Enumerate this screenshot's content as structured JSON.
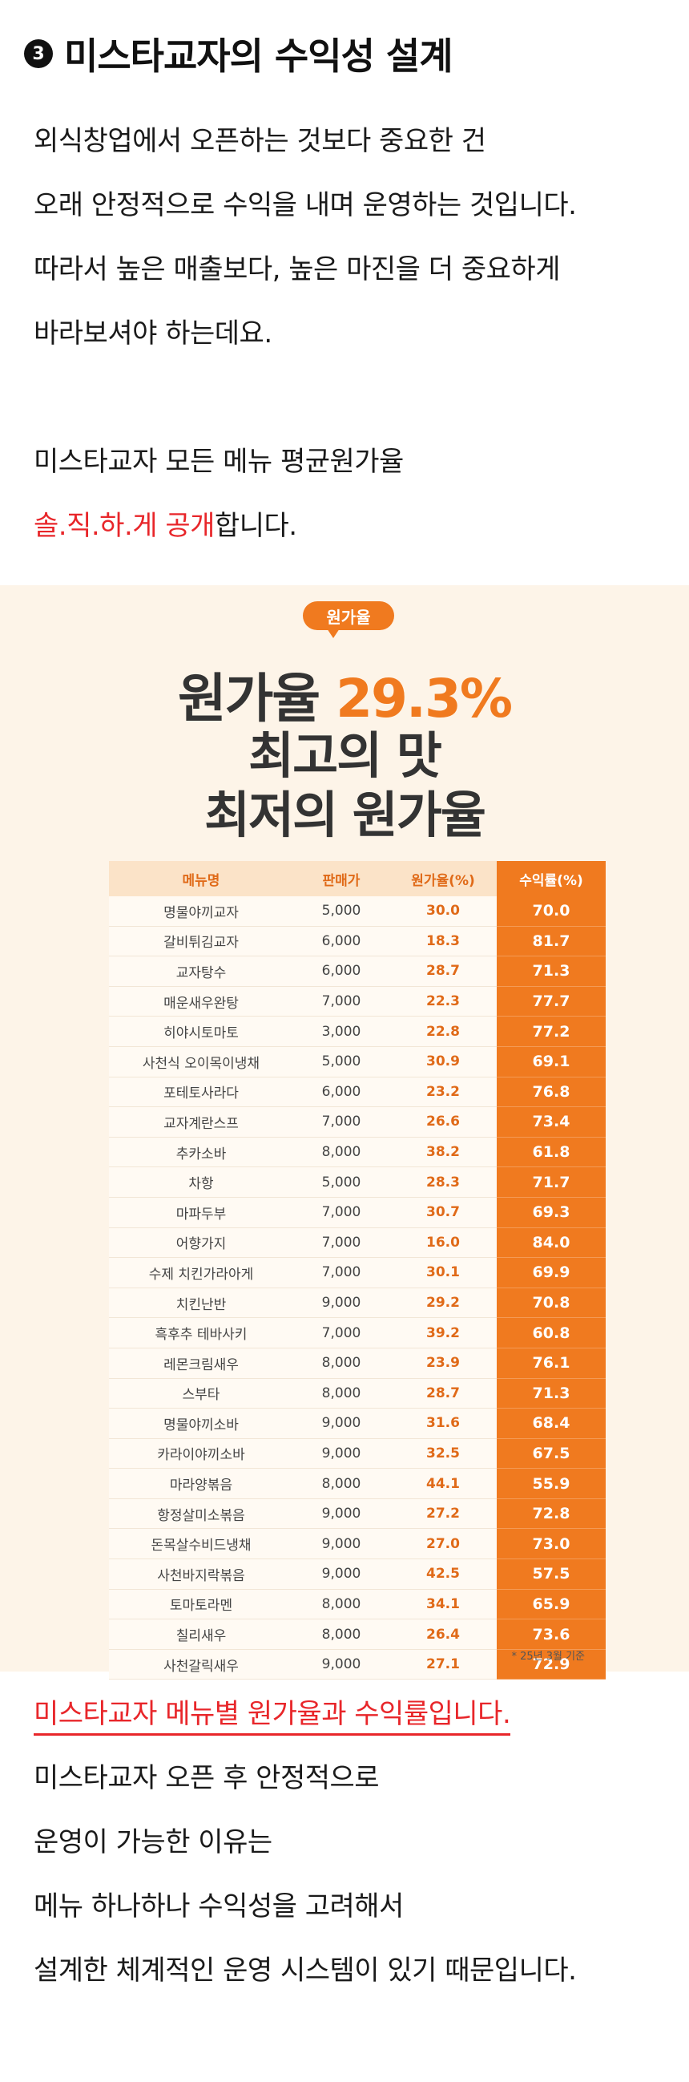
{
  "heading": {
    "number": "3",
    "title": "미스타교자의 수익성 설계"
  },
  "intro": [
    "외식창업에서 오픈하는 것보다 중요한 건",
    "오래 안정적으로 수익을 내며 운영하는 것입니다.",
    "따라서 높은 매출보다, 높은 마진을 더 중요하게",
    "바라보셔야 하는데요."
  ],
  "reveal": {
    "line1": "미스타교자 모든 메뉴 평균원가율",
    "line2_red": "솔.직.하.게 공개",
    "line2_rest": "합니다."
  },
  "infographic": {
    "badge": "원가율",
    "line1_prefix": "원가율 ",
    "line1_value": "29.3%",
    "line2": "최고의 맛",
    "line3": "최저의 원가율",
    "headers": [
      "메뉴명",
      "판매가",
      "원가율(%)",
      "수익률(%)"
    ],
    "rows": [
      {
        "name": "명물야끼교자",
        "price": "5,000",
        "cost": "30.0",
        "profit": "70.0"
      },
      {
        "name": "갈비튀김교자",
        "price": "6,000",
        "cost": "18.3",
        "profit": "81.7"
      },
      {
        "name": "교자탕수",
        "price": "6,000",
        "cost": "28.7",
        "profit": "71.3"
      },
      {
        "name": "매운새우완탕",
        "price": "7,000",
        "cost": "22.3",
        "profit": "77.7"
      },
      {
        "name": "히야시토마토",
        "price": "3,000",
        "cost": "22.8",
        "profit": "77.2"
      },
      {
        "name": "사천식 오이목이냉채",
        "price": "5,000",
        "cost": "30.9",
        "profit": "69.1"
      },
      {
        "name": "포테토사라다",
        "price": "6,000",
        "cost": "23.2",
        "profit": "76.8"
      },
      {
        "name": "교자계란스프",
        "price": "7,000",
        "cost": "26.6",
        "profit": "73.4"
      },
      {
        "name": "추카소바",
        "price": "8,000",
        "cost": "38.2",
        "profit": "61.8"
      },
      {
        "name": "차항",
        "price": "5,000",
        "cost": "28.3",
        "profit": "71.7"
      },
      {
        "name": "마파두부",
        "price": "7,000",
        "cost": "30.7",
        "profit": "69.3"
      },
      {
        "name": "어향가지",
        "price": "7,000",
        "cost": "16.0",
        "profit": "84.0"
      },
      {
        "name": "수제 치킨가라아게",
        "price": "7,000",
        "cost": "30.1",
        "profit": "69.9"
      },
      {
        "name": "치킨난반",
        "price": "9,000",
        "cost": "29.2",
        "profit": "70.8"
      },
      {
        "name": "흑후추 테바사키",
        "price": "7,000",
        "cost": "39.2",
        "profit": "60.8"
      },
      {
        "name": "레몬크림새우",
        "price": "8,000",
        "cost": "23.9",
        "profit": "76.1"
      },
      {
        "name": "스부타",
        "price": "8,000",
        "cost": "28.7",
        "profit": "71.3"
      },
      {
        "name": "명물야끼소바",
        "price": "9,000",
        "cost": "31.6",
        "profit": "68.4"
      },
      {
        "name": "카라이야끼소바",
        "price": "9,000",
        "cost": "32.5",
        "profit": "67.5"
      },
      {
        "name": "마라양볶음",
        "price": "8,000",
        "cost": "44.1",
        "profit": "55.9"
      },
      {
        "name": "항정살미소볶음",
        "price": "9,000",
        "cost": "27.2",
        "profit": "72.8"
      },
      {
        "name": "돈목살수비드냉채",
        "price": "9,000",
        "cost": "27.0",
        "profit": "73.0"
      },
      {
        "name": "사천바지락볶음",
        "price": "9,000",
        "cost": "42.5",
        "profit": "57.5"
      },
      {
        "name": "토마토라멘",
        "price": "8,000",
        "cost": "34.1",
        "profit": "65.9"
      },
      {
        "name": "칠리새우",
        "price": "8,000",
        "cost": "26.4",
        "profit": "73.6"
      },
      {
        "name": "사천갈릭새우",
        "price": "9,000",
        "cost": "27.1",
        "profit": "72.9"
      }
    ],
    "note": "* 25년 3월 기준"
  },
  "outro": {
    "headline_red": "미스타교자 메뉴별 원가율과 수익률입니다.",
    "lines": [
      "미스타교자 오픈 후 안정적으로",
      "운영이 가능한 이유는",
      "메뉴 하나하나 수익성을 고려해서",
      "설계한 체계적인 운영 시스템이 있기 때문입니다."
    ]
  }
}
